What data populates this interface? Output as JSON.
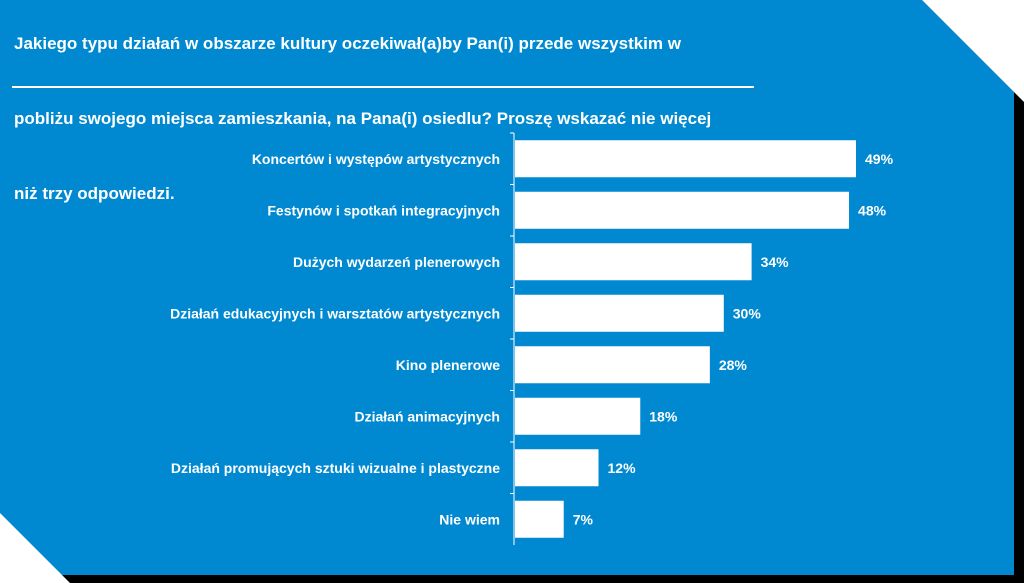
{
  "chart_data": {
    "type": "bar",
    "orientation": "horizontal",
    "title": "Jakiego typu działań w obszarze kultury oczekiwał(a)by Pan(i) przede wszystkim w pobliżu swojego miejsca zamieszkania, na Pana(i) osiedlu? Proszę wskazać nie więcej niż trzy odpowiedzi.",
    "title_lines": [
      " Jakiego typu działań w obszarze kultury oczekiwał(a)by Pan(i) przede wszystkim w",
      "pobliżu swojego miejsca zamieszkania, na Pana(i) osiedlu? Proszę wskazać nie więcej",
      "niż trzy odpowiedzi."
    ],
    "categories": [
      "Koncertów i występów artystycznych",
      "Festynów i spotkań integracyjnych",
      "Dużych wydarzeń plenerowych",
      "Działań edukacyjnych i warsztatów artystycznych",
      "Kino plenerowe",
      "Działań animacyjnych",
      "Działań promujących sztuki wizualne i plastyczne",
      "Nie wiem"
    ],
    "values": [
      49,
      48,
      34,
      30,
      28,
      18,
      12,
      7
    ],
    "value_labels": [
      "49%",
      "48%",
      "34%",
      "30%",
      "28%",
      "18%",
      "12%",
      "7%"
    ],
    "xlim": [
      0,
      60
    ],
    "grid": false,
    "colors": {
      "background": "#0089d1",
      "bar": "#ffffff",
      "text": "#ffffff",
      "frame": "#000000"
    }
  }
}
